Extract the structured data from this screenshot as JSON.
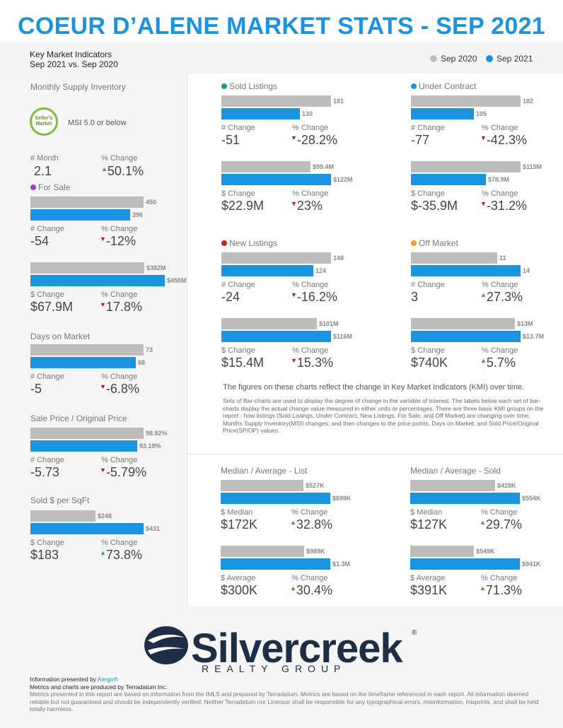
{
  "header": {
    "title": "COEUR D’ALENE MARKET STATS - SEP 2021",
    "kmi_line1": "Key Market Indicators",
    "kmi_line2": "Sep 2021 vs. Sep 2020",
    "legend_prev": "Sep 2020",
    "legend_curr": "Sep 2021"
  },
  "colors": {
    "prev": "#bdbdbd",
    "curr": "#1a94e0",
    "down": "#c0101a",
    "up": "#3aa832"
  },
  "msi": {
    "title": "Monthly Supply Inventory",
    "badge_line1": "Seller's",
    "badge_line2": "Market",
    "badge_text": "MSI 5.0 or below",
    "c1_label": "# Month",
    "c1_value": "2.1",
    "c2_label": "% Change",
    "c2_value": "50.1%",
    "c2_dir": "up"
  },
  "chart_data": [
    {
      "id": "for_sale_count",
      "section": "For Sale",
      "type": "bar",
      "series": [
        {
          "name": "Sep 2020",
          "value": 450,
          "label": "450"
        },
        {
          "name": "Sep 2021",
          "value": 396,
          "label": "396"
        }
      ],
      "c1_label": "# Change",
      "c1_value": "-54",
      "c2_label": "% Change",
      "c2_value": "-12%",
      "c2_dir": "down"
    },
    {
      "id": "for_sale_dollar",
      "type": "bar",
      "series": [
        {
          "name": "Sep 2020",
          "value": 382,
          "label": "$382M"
        },
        {
          "name": "Sep 2021",
          "value": 450,
          "label": "$450M"
        }
      ],
      "c1_label": "$ Change",
      "c1_value": "$67.9M",
      "c2_label": "% Change",
      "c2_value": "17.8%",
      "c2_dir": "down"
    },
    {
      "id": "dom",
      "section": "Days on Market",
      "type": "bar",
      "series": [
        {
          "name": "Sep 2020",
          "value": 73,
          "label": "73"
        },
        {
          "name": "Sep 2021",
          "value": 68,
          "label": "68"
        }
      ],
      "c1_label": "# Change",
      "c1_value": "-5",
      "c2_label": "% Change",
      "c2_value": "-6.8%",
      "c2_dir": "down"
    },
    {
      "id": "sp_op",
      "section": "Sale Price / Original Price",
      "type": "bar",
      "series": [
        {
          "name": "Sep 2020",
          "value": 98.92,
          "label": "98.92%"
        },
        {
          "name": "Sep 2021",
          "value": 93.19,
          "label": "93.19%"
        }
      ],
      "c1_label": "# Change",
      "c1_value": "-5.73",
      "c2_label": "% Change",
      "c2_value": "-5.79%",
      "c2_dir": "down"
    },
    {
      "id": "sold_sqft",
      "section": "Sold $ per SqFt",
      "type": "bar",
      "series": [
        {
          "name": "Sep 2020",
          "value": 248,
          "label": "$248"
        },
        {
          "name": "Sep 2021",
          "value": 431,
          "label": "$431"
        }
      ],
      "c1_label": "$ Change",
      "c1_value": "$183",
      "c2_label": "% Change",
      "c2_value": "73.8%",
      "c2_dir": "up"
    },
    {
      "id": "sold_count",
      "section": "Sold Listings",
      "type": "bar",
      "series": [
        {
          "name": "Sep 2020",
          "value": 181,
          "label": "181"
        },
        {
          "name": "Sep 2021",
          "value": 130,
          "label": "130"
        }
      ],
      "c1_label": "# Change",
      "c1_value": "-51",
      "c2_label": "% Change",
      "c2_value": "-28.2%",
      "c2_dir": "down"
    },
    {
      "id": "sold_dollar",
      "type": "bar",
      "series": [
        {
          "name": "Sep 2020",
          "value": 99.4,
          "label": "$99.4M"
        },
        {
          "name": "Sep 2021",
          "value": 122,
          "label": "$122M"
        }
      ],
      "c1_label": "$ Change",
      "c1_value": "$22.9M",
      "c2_label": "% Change",
      "c2_value": "23%",
      "c2_dir": "down"
    },
    {
      "id": "uc_count",
      "section": "Under Contract",
      "type": "bar",
      "series": [
        {
          "name": "Sep 2020",
          "value": 182,
          "label": "182"
        },
        {
          "name": "Sep 2021",
          "value": 105,
          "label": "105"
        }
      ],
      "c1_label": "# Change",
      "c1_value": "-77",
      "c2_label": "% Change",
      "c2_value": "-42.3%",
      "c2_dir": "down"
    },
    {
      "id": "uc_dollar",
      "type": "bar",
      "series": [
        {
          "name": "Sep 2020",
          "value": 115,
          "label": "$115M"
        },
        {
          "name": "Sep 2021",
          "value": 78.9,
          "label": "$78.9M"
        }
      ],
      "c1_label": "$ Change",
      "c1_value": "$-35.9M",
      "c2_label": "% Change",
      "c2_value": "-31.2%",
      "c2_dir": "down"
    },
    {
      "id": "new_count",
      "section": "New Listings",
      "type": "bar",
      "series": [
        {
          "name": "Sep 2020",
          "value": 148,
          "label": "148"
        },
        {
          "name": "Sep 2021",
          "value": 124,
          "label": "124"
        }
      ],
      "c1_label": "# Change",
      "c1_value": "-24",
      "c2_label": "% Change",
      "c2_value": "-16.2%",
      "c2_dir": "down"
    },
    {
      "id": "new_dollar",
      "type": "bar",
      "series": [
        {
          "name": "Sep 2020",
          "value": 101,
          "label": "$101M"
        },
        {
          "name": "Sep 2021",
          "value": 116,
          "label": "$116M"
        }
      ],
      "c1_label": "$ Change",
      "c1_value": "$15.4M",
      "c2_label": "% Change",
      "c2_value": "15.3%",
      "c2_dir": "down"
    },
    {
      "id": "off_count",
      "section": "Off Market",
      "type": "bar",
      "series": [
        {
          "name": "Sep 2020",
          "value": 11,
          "label": "11"
        },
        {
          "name": "Sep 2021",
          "value": 14,
          "label": "14"
        }
      ],
      "c1_label": "# Change",
      "c1_value": "3",
      "c2_label": "% Change",
      "c2_value": "27.3%",
      "c2_dir": "up"
    },
    {
      "id": "off_dollar",
      "type": "bar",
      "series": [
        {
          "name": "Sep 2020",
          "value": 13,
          "label": "$13M"
        },
        {
          "name": "Sep 2021",
          "value": 13.7,
          "label": "$13.7M"
        }
      ],
      "c1_label": "$ Change",
      "c1_value": "$740K",
      "c2_label": "% Change",
      "c2_value": "5.7%",
      "c2_dir": "up"
    },
    {
      "id": "list_median",
      "section": "Median / Average - List",
      "type": "bar",
      "series": [
        {
          "name": "Sep 2020",
          "value": 527,
          "label": "$527K"
        },
        {
          "name": "Sep 2021",
          "value": 699,
          "label": "$699K"
        }
      ],
      "c1_label": "$ Median",
      "c1_value": "$172K",
      "c2_label": "% Change",
      "c2_value": "32.8%",
      "c2_dir": "up"
    },
    {
      "id": "list_average",
      "type": "bar",
      "series": [
        {
          "name": "Sep 2020",
          "value": 989,
          "label": "$989K"
        },
        {
          "name": "Sep 2021",
          "value": 1300,
          "label": "$1.3M"
        }
      ],
      "c1_label": "$ Average",
      "c1_value": "$300K",
      "c2_label": "% Change",
      "c2_value": "30.4%",
      "c2_dir": "up"
    },
    {
      "id": "sold_median",
      "section": "Median / Average - Sold",
      "type": "bar",
      "series": [
        {
          "name": "Sep 2020",
          "value": 428,
          "label": "$428K"
        },
        {
          "name": "Sep 2021",
          "value": 554,
          "label": "$554K"
        }
      ],
      "c1_label": "$ Median",
      "c1_value": "$127K",
      "c2_label": "% Change",
      "c2_value": "29.7%",
      "c2_dir": "up"
    },
    {
      "id": "sold_average",
      "type": "bar",
      "series": [
        {
          "name": "Sep 2020",
          "value": 549,
          "label": "$549K"
        },
        {
          "name": "Sep 2021",
          "value": 941,
          "label": "$941K"
        }
      ],
      "c1_label": "$ Average",
      "c1_value": "$391K",
      "c2_label": "% Change",
      "c2_value": "71.3%",
      "c2_dir": "up"
    }
  ],
  "section_dots": {
    "Sold Listings": "#1a9a8a",
    "Under Contract": "#1a94e0",
    "New Listings": "#d0201a",
    "Off Market": "#f0a020",
    "For Sale": "#9b3fc8"
  },
  "notes": {
    "head": "The figures on these charts reflect the change in Key Market Indicators (KMI) over time.",
    "body": "Sets of Bar-charts are used to display the degree of change in the variable of interest. The labels below each set of bar-charts display the actual change value measured in either units or percentages. There are three basic KMI groups on the report - how listings (Sold Listings, Under Contract, New Listings, For Sale, and Off Market) are changing over time; Months Supply Inventory(MSI) changes; and then changes to the price points, Days on Market, and Sold Price/Original Price(SP/OP) values."
  },
  "logo": {
    "word": "Silvercreek",
    "sub": "REALTY GROUP",
    "mark": "®"
  },
  "footer": {
    "line1_prefix": "Information presented by ",
    "line1_link": "Aergo®",
    "line2": "Metrics and charts are produced by Terradatum Inc.",
    "line3": "Metrics presented in this report are based on information from the IMLS and prepared by Terradatum. Metrics are based on the timeframe referenced in each report. All information deemed reliable but not guaranteed and should be independently verified. Neither Terradatum nor Licensor shall be responsible for any typographical errors, misinformation, misprints, and shall be held totally harmless."
  }
}
